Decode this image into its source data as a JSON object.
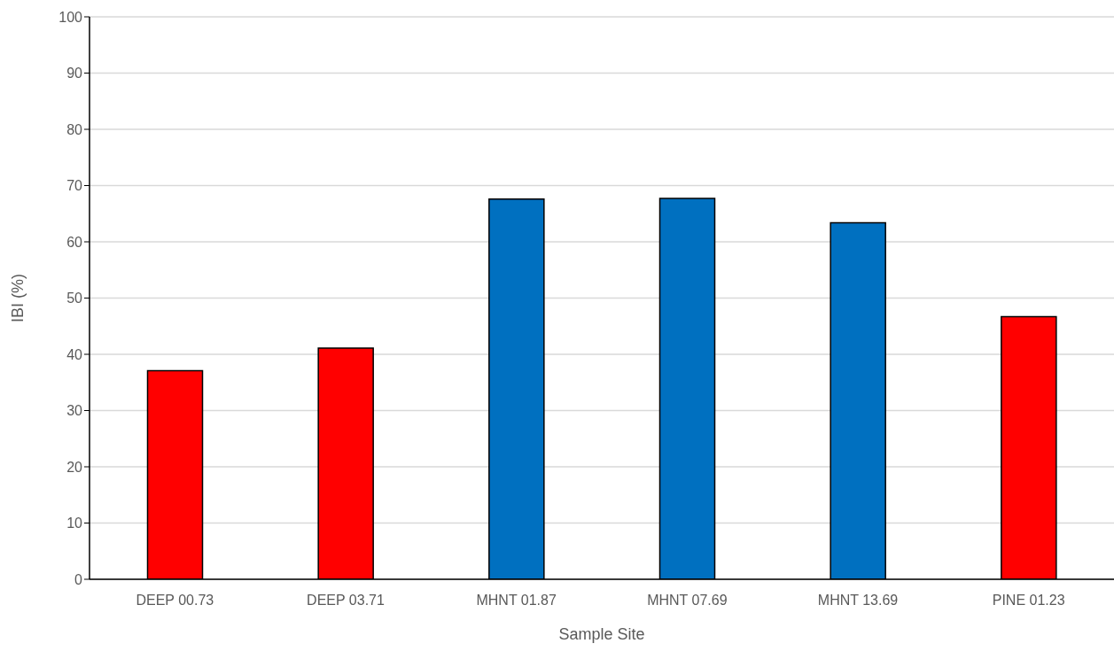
{
  "chart_data": {
    "type": "bar",
    "xlabel": "Sample Site",
    "ylabel": "IBI (%)",
    "categories": [
      "DEEP 00.73",
      "DEEP 03.71",
      "MHNT 01.87",
      "MHNT 07.69",
      "MHNT 13.69",
      "PINE 01.23"
    ],
    "values": [
      37.1,
      41.1,
      67.6,
      67.7,
      63.4,
      46.7
    ],
    "colors": [
      "#ff0000",
      "#ff0000",
      "#0070c0",
      "#0070c0",
      "#0070c0",
      "#ff0000"
    ],
    "ylim": [
      0,
      100
    ],
    "yticks": [
      0,
      10,
      20,
      30,
      40,
      50,
      60,
      70,
      80,
      90,
      100
    ],
    "grid": "y",
    "legend": false
  }
}
